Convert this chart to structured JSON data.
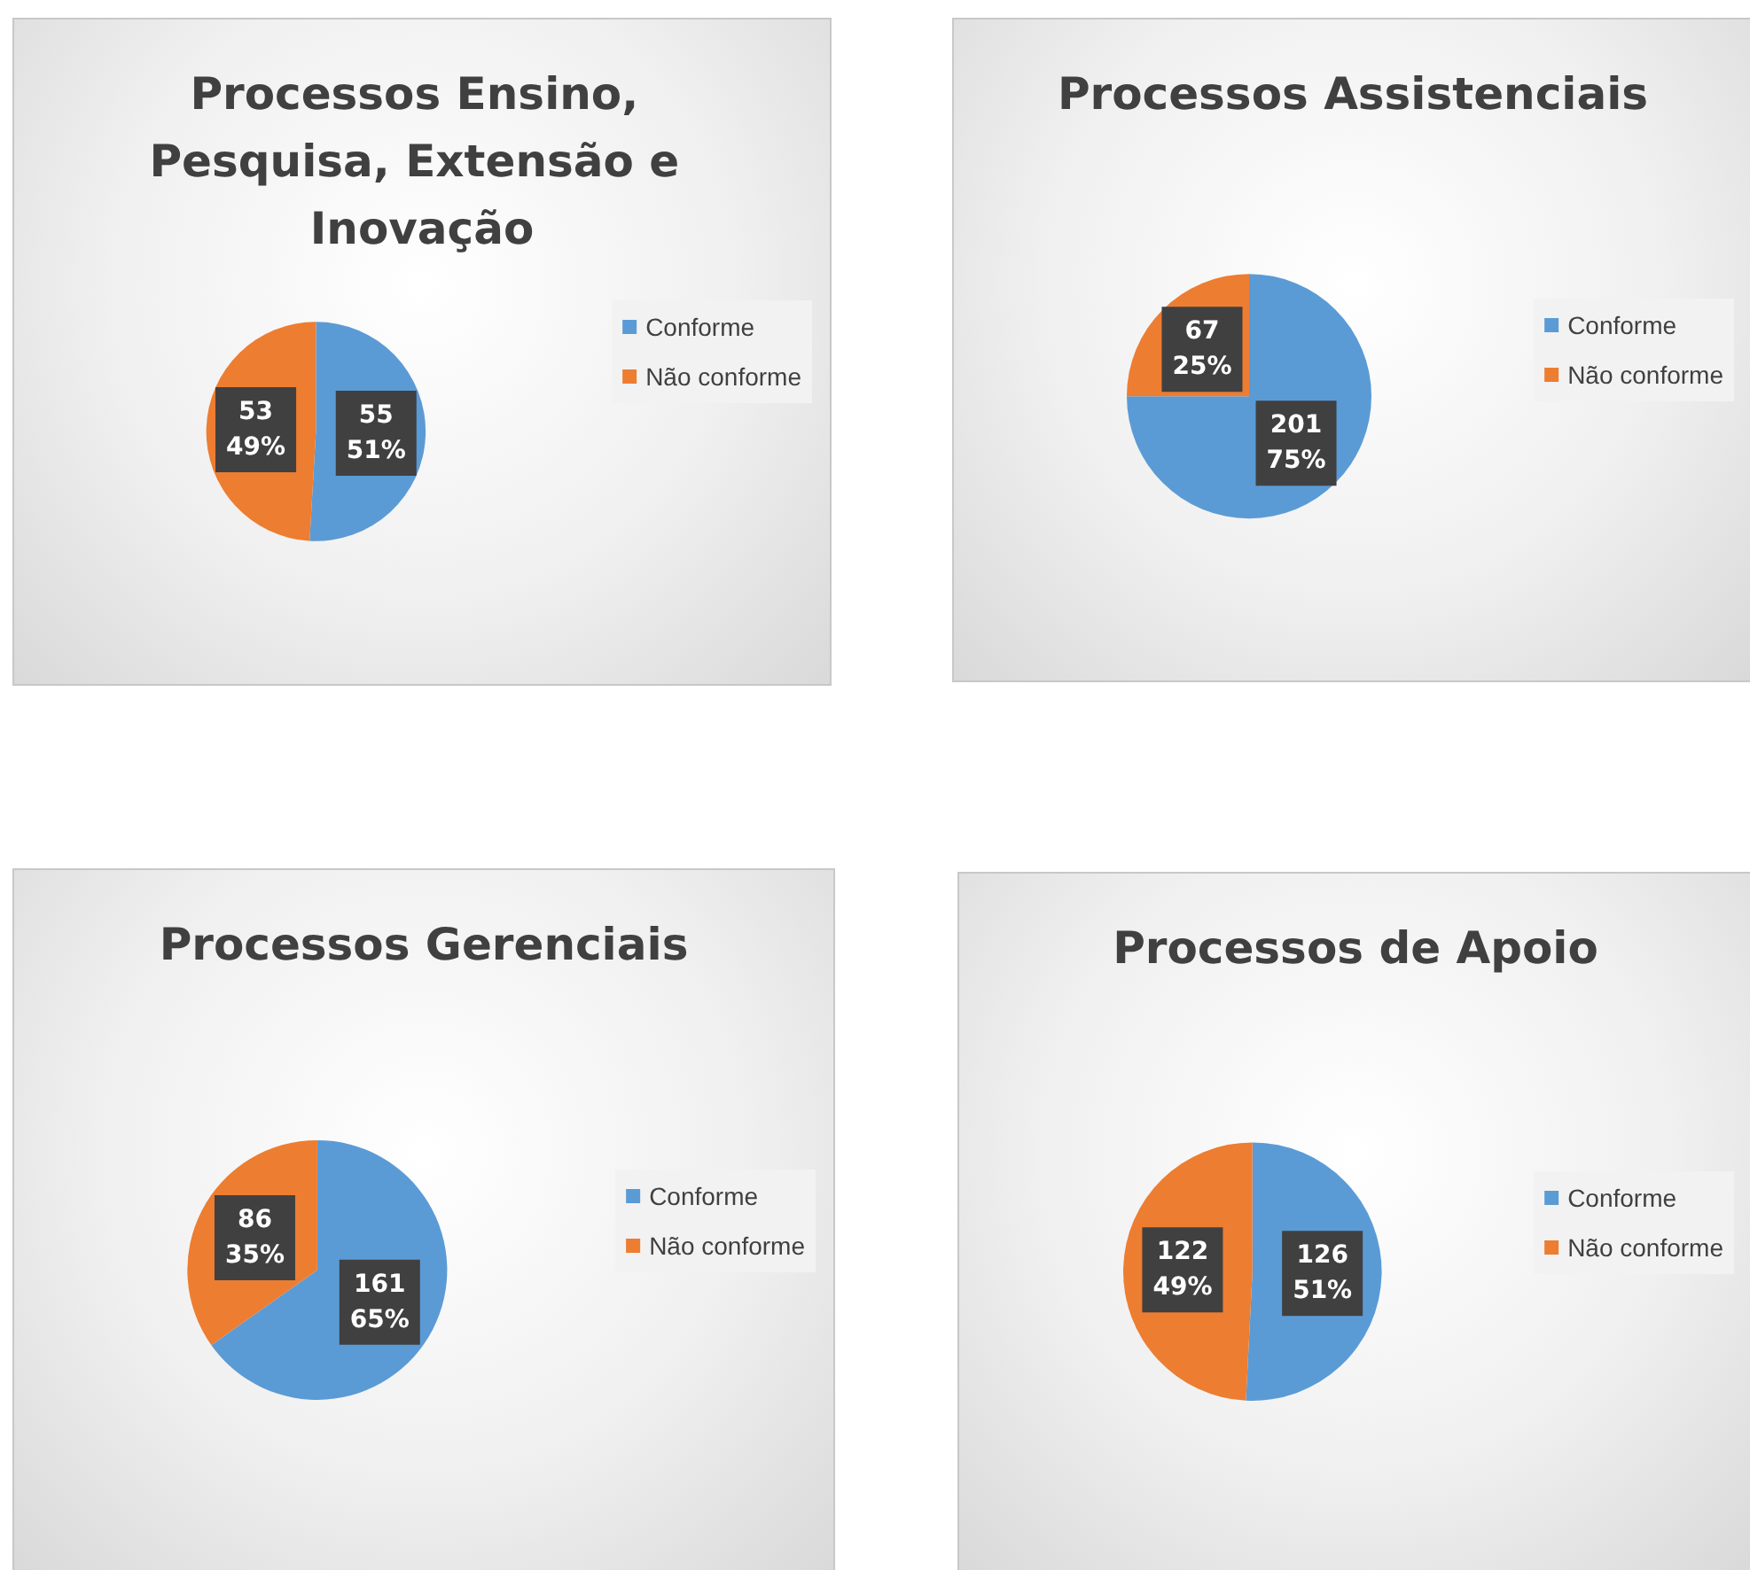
{
  "chart_data": [
    {
      "type": "pie",
      "title": "Processos Ensino, Pesquisa, Extensão e Inovação",
      "categories": [
        "Conforme",
        "Não conforme"
      ],
      "values": [
        55,
        53
      ],
      "value_labels": [
        "55\n51%",
        "53\n49%"
      ],
      "colors": [
        "#5b9bd5",
        "#ed7d31"
      ],
      "legend": "right"
    },
    {
      "type": "pie",
      "title": "Processos Assistenciais",
      "categories": [
        "Conforme",
        "Não conforme"
      ],
      "values": [
        201,
        67
      ],
      "value_labels": [
        "201\n75%",
        "67\n25%"
      ],
      "colors": [
        "#5b9bd5",
        "#ed7d31"
      ],
      "legend": "right"
    },
    {
      "type": "pie",
      "title": "Processos Gerenciais",
      "categories": [
        "Conforme",
        "Não conforme"
      ],
      "values": [
        161,
        86
      ],
      "value_labels": [
        "161\n65%",
        "86\n35%"
      ],
      "colors": [
        "#5b9bd5",
        "#ed7d31"
      ],
      "legend": "right"
    },
    {
      "type": "pie",
      "title": "Processos de Apoio",
      "categories": [
        "Conforme",
        "Não conforme"
      ],
      "values": [
        126,
        122
      ],
      "value_labels": [
        "126\n51%",
        "122\n49%"
      ],
      "colors": [
        "#5b9bd5",
        "#ed7d31"
      ],
      "legend": "right"
    }
  ]
}
